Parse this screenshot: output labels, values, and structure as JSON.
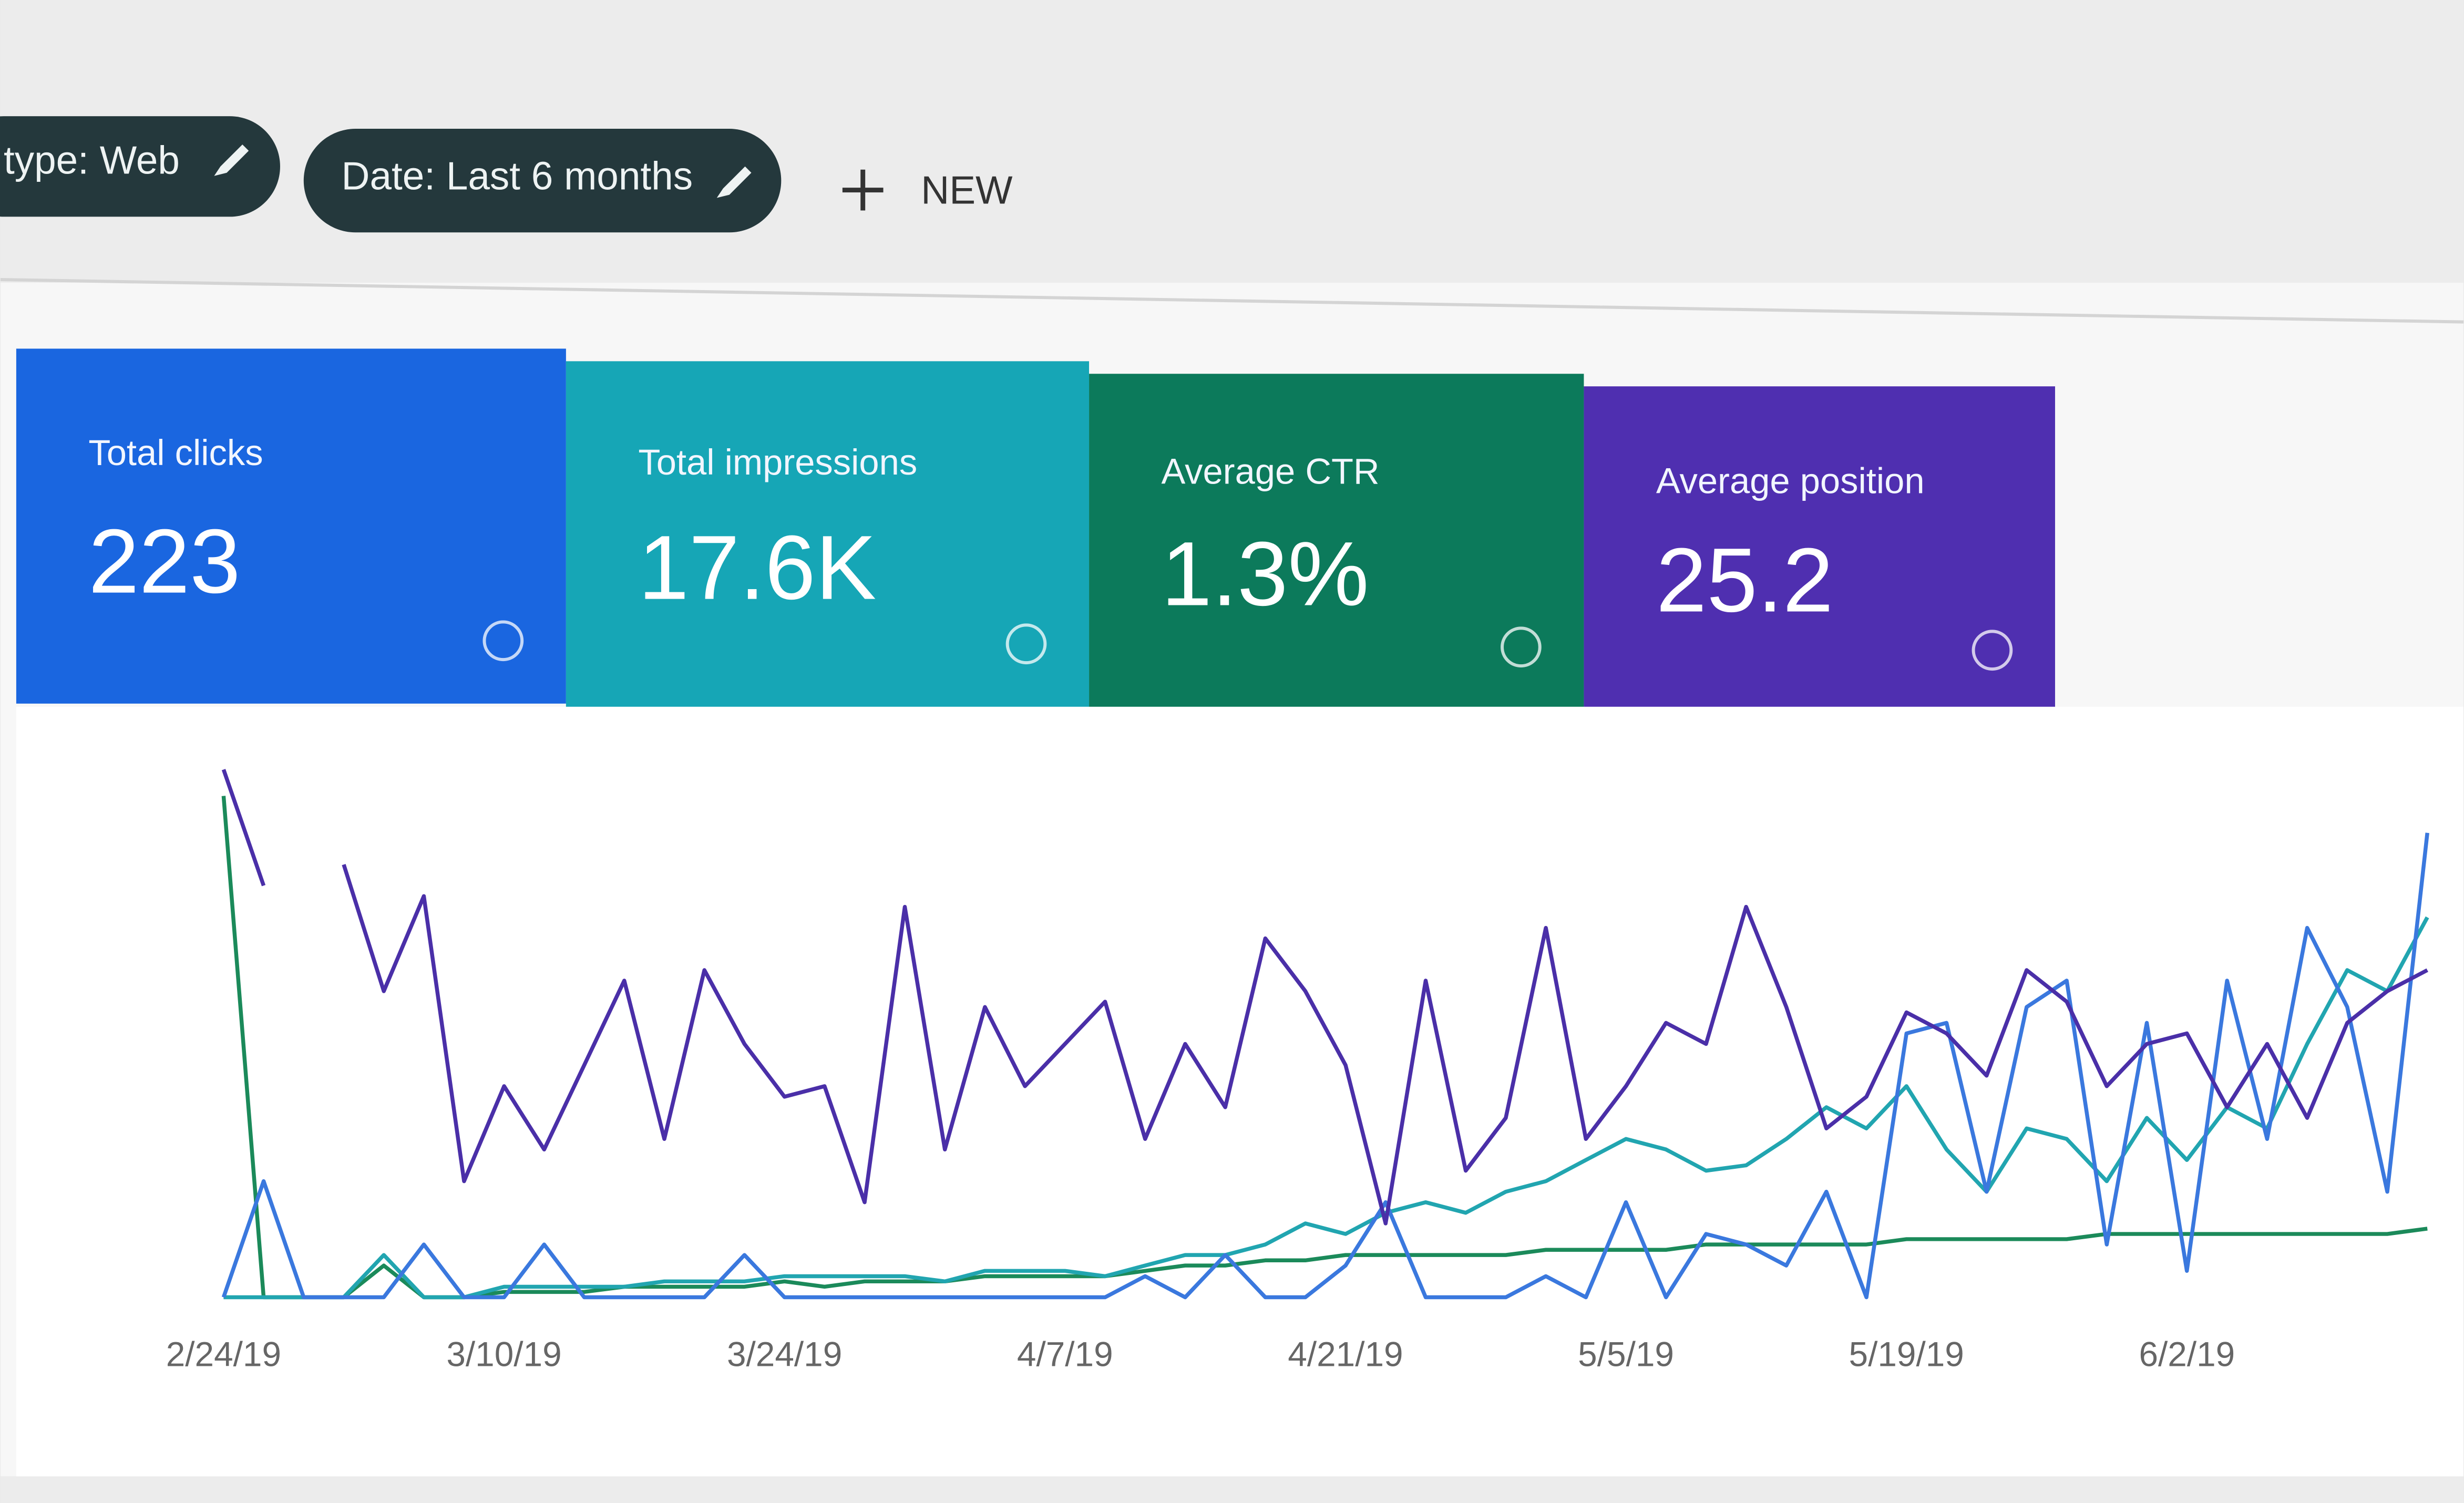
{
  "filters": [
    {
      "label": "type: Web"
    },
    {
      "label": "Date: Last 6 months"
    }
  ],
  "new_button": "NEW",
  "metrics": [
    {
      "label": "Total clicks",
      "value": "223",
      "color": "#1a66e0"
    },
    {
      "label": "Total impressions",
      "value": "17.6K",
      "color": "#16a6b6"
    },
    {
      "label": "Average CTR",
      "value": "1.3%",
      "color": "#0c7a5b"
    },
    {
      "label": "Average position",
      "value": "25.2",
      "color": "#4f2fb0"
    }
  ],
  "chart_data": {
    "type": "line",
    "categories": [
      "2/24/19",
      null,
      null,
      null,
      null,
      null,
      null,
      "3/10/19",
      null,
      null,
      null,
      null,
      null,
      null,
      "3/24/19",
      null,
      null,
      null,
      null,
      null,
      null,
      "4/7/19",
      null,
      null,
      null,
      null,
      null,
      null,
      "4/21/19",
      null,
      null,
      null,
      null,
      null,
      null,
      "5/5/19",
      null,
      null,
      null,
      null,
      null,
      null,
      "5/19/19",
      null,
      null,
      null,
      null,
      null,
      null,
      "6/2/19",
      null,
      null,
      null,
      null,
      null,
      null
    ],
    "ylim": [
      0,
      100
    ],
    "series": [
      {
        "color": "#4a2fa8",
        "values": [
          100,
          78,
          null,
          82,
          58,
          76,
          22,
          40,
          28,
          44,
          60,
          30,
          62,
          48,
          38,
          40,
          18,
          74,
          28,
          55,
          40,
          48,
          56,
          30,
          48,
          36,
          68,
          58,
          44,
          14,
          60,
          24,
          34,
          70,
          30,
          40,
          52,
          48,
          74,
          55,
          32,
          38,
          54,
          50,
          42,
          62,
          56,
          40,
          48,
          50,
          36,
          48,
          34,
          52,
          58,
          62
        ]
      },
      {
        "color": "#3a78de",
        "values": [
          0,
          22,
          0,
          0,
          0,
          10,
          0,
          0,
          10,
          0,
          0,
          0,
          0,
          8,
          0,
          0,
          0,
          0,
          0,
          0,
          0,
          0,
          0,
          4,
          0,
          8,
          0,
          0,
          6,
          18,
          0,
          0,
          0,
          4,
          0,
          18,
          0,
          12,
          10,
          6,
          20,
          0,
          50,
          52,
          20,
          55,
          60,
          10,
          52,
          5,
          60,
          30,
          70,
          55,
          20,
          88
        ]
      },
      {
        "color": "#21a5b0",
        "values": [
          0,
          0,
          0,
          0,
          8,
          0,
          0,
          2,
          2,
          2,
          2,
          3,
          3,
          3,
          4,
          4,
          4,
          4,
          3,
          5,
          5,
          5,
          4,
          6,
          8,
          8,
          10,
          14,
          12,
          16,
          18,
          16,
          20,
          22,
          26,
          30,
          28,
          24,
          25,
          30,
          36,
          32,
          40,
          28,
          20,
          32,
          30,
          22,
          34,
          26,
          36,
          32,
          48,
          62,
          58,
          72
        ]
      },
      {
        "color": "#1b8a5a",
        "values": [
          95,
          0,
          0,
          0,
          6,
          0,
          0,
          1,
          1,
          1,
          2,
          2,
          2,
          2,
          3,
          2,
          3,
          3,
          3,
          4,
          4,
          4,
          4,
          5,
          6,
          6,
          7,
          7,
          8,
          8,
          8,
          8,
          8,
          9,
          9,
          9,
          9,
          10,
          10,
          10,
          10,
          10,
          11,
          11,
          11,
          11,
          11,
          12,
          12,
          12,
          12,
          12,
          12,
          12,
          12,
          13
        ]
      }
    ]
  }
}
